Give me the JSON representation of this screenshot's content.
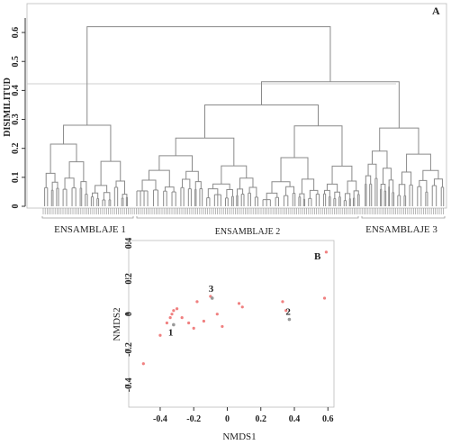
{
  "panel_a": {
    "label": "A",
    "ylabel": "DISIMILITUD",
    "yticks": [
      "0",
      "0.1",
      "0.2",
      "0.3",
      "0.4",
      "0.5",
      "0.6"
    ],
    "groups": [
      "ENSAMBLAJE 1",
      "ENSAMBLAJE 2",
      "ENSAMBLAJE 3"
    ]
  },
  "panel_b": {
    "label": "B",
    "xlabel": "NMDS1",
    "ylabel": "NMDS2",
    "xticks": [
      "-0.4",
      "-0.2",
      "0",
      "0.2",
      "0.4",
      "0.6"
    ],
    "yticks": [
      "0.4",
      "0.2",
      "0",
      "-0.2",
      "-0.4"
    ]
  },
  "chart_data": [
    {
      "type": "dendrogram",
      "ylabel": "DISIMILITUD",
      "ylim": [
        0,
        0.65
      ],
      "cut_height": 0.4,
      "root_height": 0.62,
      "merges": [
        {
          "children": [
            "ENSAMBLAJE 2",
            "ENSAMBLAJE 3"
          ],
          "height": 0.43
        },
        {
          "children": [
            "ENSAMBLAJE 1",
            "ENSAMBLAJE 2 + ENSAMBLAJE 3"
          ],
          "height": 0.62
        }
      ],
      "cluster_heights": {
        "ENSAMBLAJE 1": 0.28,
        "ENSAMBLAJE 2": 0.35,
        "ENSAMBLAJE 3": 0.27
      },
      "groups": [
        "ENSAMBLAJE 1",
        "ENSAMBLAJE 2",
        "ENSAMBLAJE 3"
      ]
    },
    {
      "type": "scatter",
      "xlabel": "NMDS1",
      "ylabel": "NMDS2",
      "xlim": [
        -0.55,
        0.62
      ],
      "ylim": [
        -0.5,
        0.4
      ],
      "points": [
        {
          "x": -0.5,
          "y": -0.28
        },
        {
          "x": -0.4,
          "y": -0.12
        },
        {
          "x": -0.36,
          "y": -0.05
        },
        {
          "x": -0.34,
          "y": -0.02
        },
        {
          "x": -0.33,
          "y": 0.0
        },
        {
          "x": -0.32,
          "y": 0.02
        },
        {
          "x": -0.3,
          "y": 0.03
        },
        {
          "x": -0.27,
          "y": -0.02
        },
        {
          "x": -0.23,
          "y": -0.05
        },
        {
          "x": -0.2,
          "y": -0.08
        },
        {
          "x": -0.18,
          "y": 0.07
        },
        {
          "x": -0.14,
          "y": -0.04
        },
        {
          "x": -0.06,
          "y": 0.0
        },
        {
          "x": -0.1,
          "y": 0.1
        },
        {
          "x": -0.03,
          "y": -0.07
        },
        {
          "x": 0.07,
          "y": 0.06
        },
        {
          "x": 0.09,
          "y": 0.04
        },
        {
          "x": 0.33,
          "y": 0.07
        },
        {
          "x": 0.35,
          "y": 0.02
        },
        {
          "x": 0.58,
          "y": 0.09
        },
        {
          "x": 0.59,
          "y": 0.35
        }
      ],
      "centroids": [
        {
          "label": "1",
          "x": -0.32,
          "y": -0.06
        },
        {
          "label": "2",
          "x": 0.37,
          "y": -0.03
        },
        {
          "label": "3",
          "x": -0.09,
          "y": 0.09
        }
      ]
    }
  ]
}
